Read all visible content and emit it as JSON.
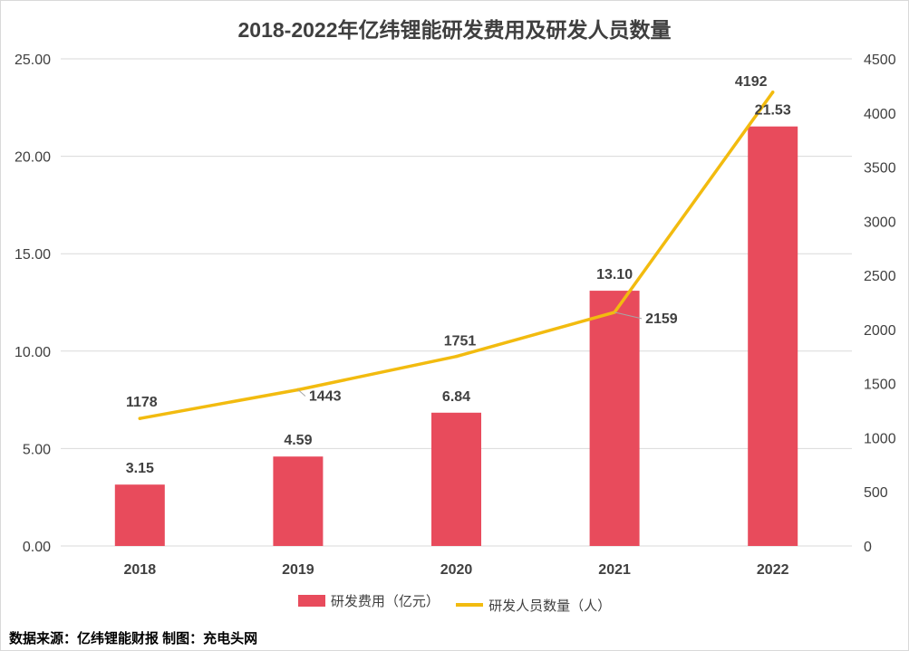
{
  "title": "2018-2022年亿纬锂能研发费用及研发人员数量",
  "source": "数据来源：亿纬锂能财报  制图：充电头网",
  "colors": {
    "bar": "#e84b5c",
    "line": "#f2bb0f",
    "grid": "#d9d9d9",
    "text": "#404040"
  },
  "legend": {
    "bar_label": "研发费用（亿元）",
    "line_label": "研发人员数量（人）"
  },
  "chart_data": {
    "type": "bar+line",
    "categories": [
      "2018",
      "2019",
      "2020",
      "2021",
      "2022"
    ],
    "series": [
      {
        "name": "研发费用（亿元）",
        "type": "bar",
        "axis": "left",
        "values": [
          3.15,
          4.59,
          6.84,
          13.1,
          21.53
        ],
        "labels": [
          "3.15",
          "4.59",
          "6.84",
          "13.10",
          "21.53"
        ]
      },
      {
        "name": "研发人员数量（人）",
        "type": "line",
        "axis": "right",
        "values": [
          1178,
          1443,
          1751,
          2159,
          4192
        ],
        "labels": [
          "1178",
          "1443",
          "1751",
          "2159",
          "4192"
        ]
      }
    ],
    "y_left": {
      "min": 0,
      "max": 25,
      "ticks": [
        "0.00",
        "5.00",
        "10.00",
        "15.00",
        "20.00",
        "25.00"
      ]
    },
    "y_right": {
      "min": 0,
      "max": 4500,
      "ticks": [
        "0",
        "500",
        "1000",
        "1500",
        "2000",
        "2500",
        "3000",
        "3500",
        "4000",
        "4500"
      ]
    },
    "grid": true,
    "legend_position": "bottom"
  }
}
